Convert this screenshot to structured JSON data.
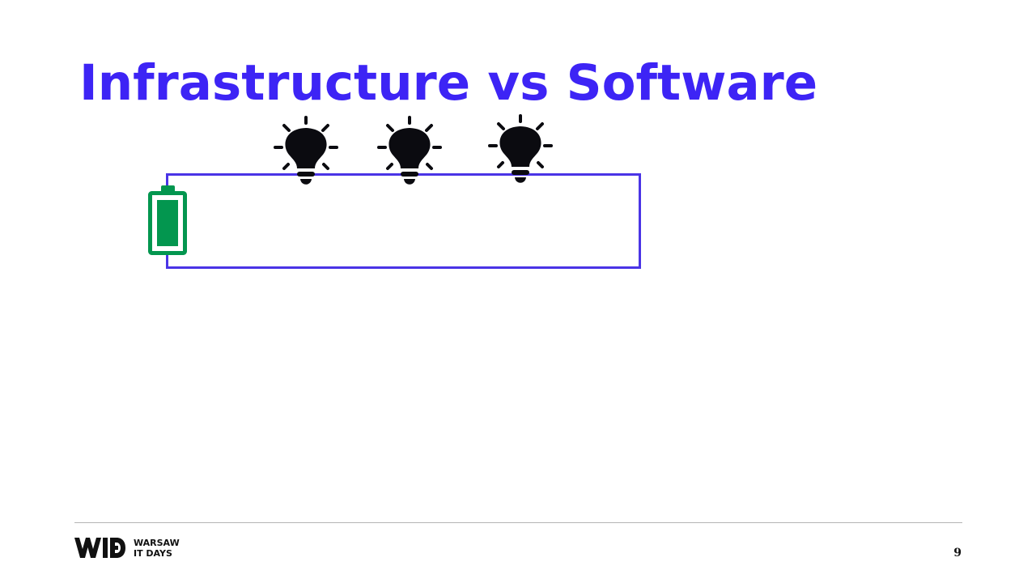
{
  "slide": {
    "title": "Infrastructure vs Software",
    "page_number": "9"
  },
  "diagram": {
    "battery_icon": "battery-full-icon",
    "bulb_icon": "lightbulb-on-icon",
    "bulb_count": 3
  },
  "footer": {
    "logo_mark": "WITD",
    "logo_line1": "WARSAW",
    "logo_line2": "IT DAYS"
  },
  "colors": {
    "title": "#3d24f5",
    "wire": "#4a34e6",
    "battery": "#03964f",
    "bulb": "#0b0b10",
    "rule": "#b5b5b5"
  }
}
